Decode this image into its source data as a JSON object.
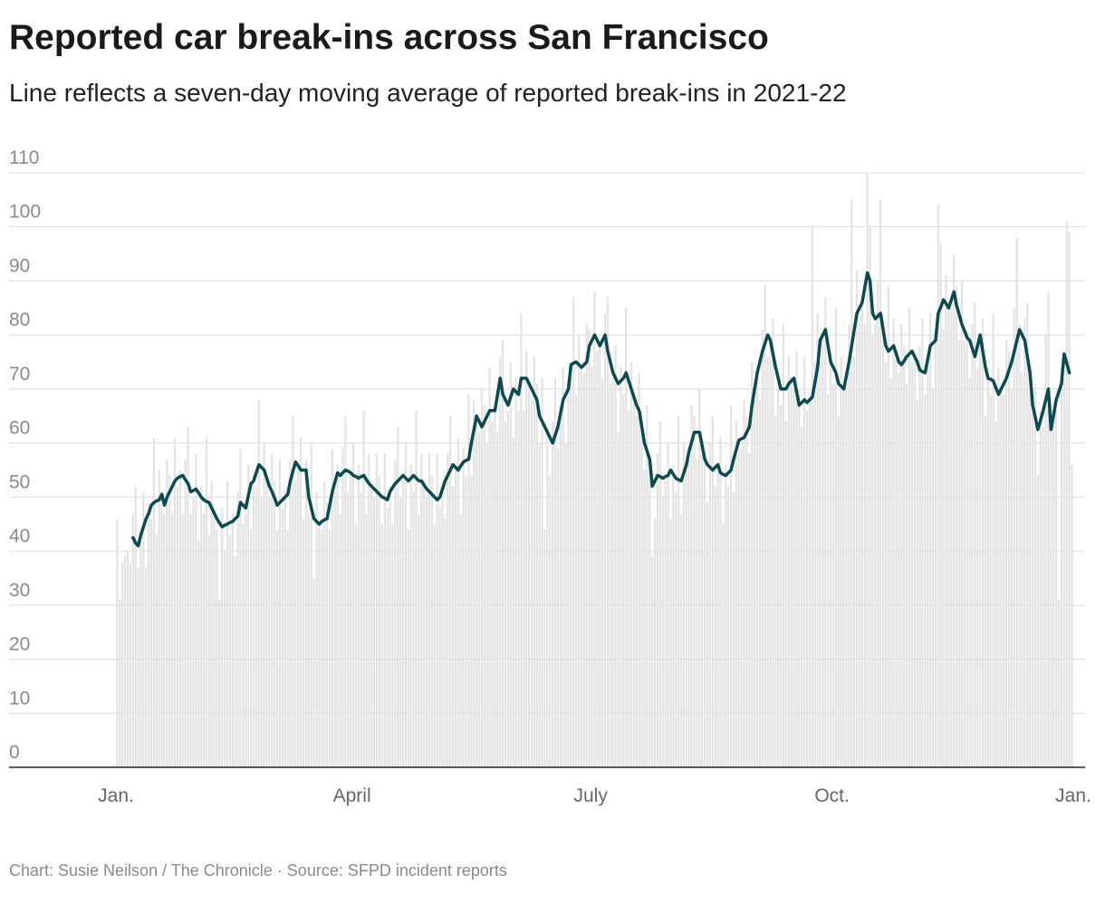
{
  "chart_data": {
    "type": "combo",
    "title": "Reported car break-ins across San Francisco",
    "subtitle": "Line reflects a seven-day moving average of reported break-ins in 2021-22",
    "source": "Chart: Susie Neilson / The Chronicle · Source: SFPD incident reports",
    "grid": true,
    "xlim": [
      0,
      365
    ],
    "xticks": [
      {
        "value": 0,
        "label": "Jan."
      },
      {
        "value": 90,
        "label": "April"
      },
      {
        "value": 181,
        "label": "July"
      },
      {
        "value": 273,
        "label": "Oct."
      },
      {
        "value": 365,
        "label": "Jan."
      }
    ],
    "ylim": [
      0,
      110
    ],
    "yticks": [
      0,
      10,
      20,
      30,
      40,
      50,
      60,
      70,
      80,
      90,
      100,
      110
    ],
    "x": [
      0,
      1,
      2,
      3,
      4,
      5,
      6,
      7,
      8,
      9,
      10,
      11,
      12,
      13,
      14,
      15,
      16,
      17,
      18,
      19,
      20,
      21,
      22,
      23,
      24,
      25,
      26,
      27,
      28,
      29,
      30,
      31,
      32,
      33,
      34,
      35,
      36,
      37,
      38,
      39,
      40,
      41,
      42,
      43,
      44,
      45,
      46,
      47,
      48,
      49,
      50,
      51,
      52,
      53,
      54,
      55,
      56,
      57,
      58,
      59,
      60,
      61,
      62,
      63,
      64,
      65,
      66,
      67,
      68,
      69,
      70,
      71,
      72,
      73,
      74,
      75,
      76,
      77,
      78,
      79,
      80,
      81,
      82,
      83,
      84,
      85,
      86,
      87,
      88,
      89,
      90,
      91,
      92,
      93,
      94,
      95,
      96,
      97,
      98,
      99,
      100,
      101,
      102,
      103,
      104,
      105,
      106,
      107,
      108,
      109,
      110,
      111,
      112,
      113,
      114,
      115,
      116,
      117,
      118,
      119,
      120,
      121,
      122,
      123,
      124,
      125,
      126,
      127,
      128,
      129,
      130,
      131,
      132,
      133,
      134,
      135,
      136,
      137,
      138,
      139,
      140,
      141,
      142,
      143,
      144,
      145,
      146,
      147,
      148,
      149,
      150,
      151,
      152,
      153,
      154,
      155,
      156,
      157,
      158,
      159,
      160,
      161,
      162,
      163,
      164,
      165,
      166,
      167,
      168,
      169,
      170,
      171,
      172,
      173,
      174,
      175,
      176,
      177,
      178,
      179,
      180,
      181,
      182,
      183,
      184,
      185,
      186,
      187,
      188,
      189,
      190,
      191,
      192,
      193,
      194,
      195,
      196,
      197,
      198,
      199,
      200,
      201,
      202,
      203,
      204,
      205,
      206,
      207,
      208,
      209,
      210,
      211,
      212,
      213,
      214,
      215,
      216,
      217,
      218,
      219,
      220,
      221,
      222,
      223,
      224,
      225,
      226,
      227,
      228,
      229,
      230,
      231,
      232,
      233,
      234,
      235,
      236,
      237,
      238,
      239,
      240,
      241,
      242,
      243,
      244,
      245,
      246,
      247,
      248,
      249,
      250,
      251,
      252,
      253,
      254,
      255,
      256,
      257,
      258,
      259,
      260,
      261,
      262,
      263,
      264,
      265,
      266,
      267,
      268,
      269,
      270,
      271,
      272,
      273,
      274,
      275,
      276,
      277,
      278,
      279,
      280,
      281,
      282,
      283,
      284,
      285,
      286,
      287,
      288,
      289,
      290,
      291,
      292,
      293,
      294,
      295,
      296,
      297,
      298,
      299,
      300,
      301,
      302,
      303,
      304,
      305,
      306,
      307,
      308,
      309,
      310,
      311,
      312,
      313,
      314,
      315,
      316,
      317,
      318,
      319,
      320,
      321,
      322,
      323,
      324,
      325,
      326,
      327,
      328,
      329,
      330,
      331,
      332,
      333,
      334,
      335,
      336,
      337,
      338,
      339,
      340,
      341,
      342,
      343,
      344,
      345,
      346,
      347,
      348,
      349,
      350,
      351,
      352,
      353,
      354,
      355,
      356,
      357,
      358,
      359,
      360,
      361,
      362,
      363,
      364
    ],
    "series": [
      {
        "type": "bar",
        "color": "#e3e3e3",
        "values": [
          46,
          31,
          38,
          39,
          40,
          38,
          47,
          52,
          37,
          42,
          51,
          37,
          49,
          46,
          61,
          43,
          55,
          51,
          47,
          57,
          54,
          47,
          61,
          52,
          55,
          47,
          57,
          63,
          47,
          50,
          58,
          42,
          52,
          47,
          61,
          43,
          53,
          47,
          44,
          31,
          48,
          40,
          53,
          43,
          47,
          39,
          51,
          59,
          45,
          47,
          56,
          44,
          55,
          52,
          68,
          50,
          60,
          54,
          50,
          58,
          53,
          44,
          57,
          48,
          51,
          44,
          57,
          65,
          53,
          55,
          61,
          46,
          57,
          47,
          60,
          35,
          51,
          45,
          44,
          53,
          49,
          44,
          59,
          51,
          56,
          47,
          59,
          65,
          51,
          54,
          60,
          45,
          56,
          51,
          66,
          47,
          58,
          52,
          50,
          58,
          54,
          45,
          58,
          48,
          52,
          45,
          57,
          63,
          50,
          53,
          60,
          44,
          56,
          51,
          66,
          47,
          58,
          52,
          50,
          58,
          54,
          45,
          58,
          48,
          53,
          46,
          58,
          65,
          52,
          55,
          61,
          47,
          59,
          54,
          69,
          54,
          68,
          65,
          62,
          70,
          67,
          60,
          74,
          64,
          67,
          62,
          76,
          79,
          64,
          66,
          75,
          61,
          72,
          66,
          84,
          66,
          77,
          71,
          68,
          76,
          71,
          60,
          72,
          44,
          63,
          54,
          64,
          72,
          59,
          65,
          74,
          60,
          72,
          72,
          87,
          69,
          80,
          74,
          73,
          82,
          81,
          74,
          88,
          77,
          79,
          72,
          84,
          87,
          71,
          72,
          78,
          62,
          74,
          69,
          85,
          66,
          75,
          69,
          65,
          73,
          66,
          55,
          67,
          55,
          39,
          46,
          58,
          64,
          50,
          53,
          60,
          46,
          56,
          51,
          65,
          47,
          60,
          56,
          57,
          67,
          65,
          57,
          70,
          58,
          58,
          49,
          60,
          65,
          52,
          55,
          61,
          45,
          56,
          52,
          67,
          51,
          64,
          61,
          59,
          68,
          65,
          58,
          75,
          68,
          74,
          68,
          81,
          89,
          76,
          78,
          83,
          65,
          74,
          67,
          82,
          64,
          76,
          72,
          70,
          77,
          70,
          63,
          76,
          66,
          69,
          100,
          75,
          84,
          75,
          79,
          87,
          69,
          77,
          71,
          85,
          65,
          76,
          70,
          71,
          82,
          105,
          76,
          92,
          83,
          87,
          82,
          110,
          100,
          80,
          82,
          90,
          105,
          83,
          75,
          89,
          72,
          83,
          77,
          73,
          82,
          78,
          71,
          85,
          75,
          77,
          68,
          78,
          83,
          69,
          75,
          84,
          70,
          81,
          104,
          97,
          81,
          91,
          85,
          85,
          95,
          89,
          79,
          90,
          79,
          81,
          72,
          82,
          86,
          74,
          79,
          83,
          65,
          74,
          69,
          84,
          64,
          74,
          70,
          69,
          79,
          77,
          70,
          85,
          98,
          82,
          73,
          83,
          86,
          69,
          66,
          71,
          54,
          66,
          63,
          80,
          88,
          68,
          65,
          66,
          31,
          74,
          72,
          101,
          99,
          56
        ]
      },
      {
        "type": "line",
        "color": "#0b4a4f",
        "values": [
          null,
          null,
          null,
          null,
          null,
          null,
          42.5,
          41.5,
          41,
          43,
          44.5,
          46,
          47,
          48.5,
          49,
          49.3,
          49.5,
          50.5,
          48.5,
          50,
          51,
          52,
          53,
          53.5,
          53.8,
          54,
          53.2,
          52.5,
          51,
          51.2,
          51.5,
          50.8,
          50,
          49.5,
          49.2,
          49,
          48,
          47,
          46,
          45.2,
          44.5,
          44.8,
          45,
          45.3,
          45.5,
          46,
          46.5,
          49,
          48.5,
          48,
          50.3,
          52.5,
          53,
          54.5,
          56,
          55.5,
          55,
          53.5,
          52,
          51,
          49.8,
          48.5,
          49,
          49.5,
          50,
          50.5,
          53,
          54.8,
          56.5,
          55.8,
          55,
          55,
          55,
          50,
          48,
          46,
          45.5,
          45,
          45.5,
          45.8,
          46,
          48.5,
          51,
          52.8,
          54.5,
          54,
          54.5,
          55,
          54.8,
          54.5,
          54,
          53.8,
          53.5,
          53.8,
          54,
          53.2,
          52.5,
          52,
          51.5,
          51,
          50.5,
          50,
          49.8,
          49.5,
          51,
          51.8,
          52.5,
          53,
          53.5,
          54,
          53.5,
          53,
          53.5,
          54,
          53.5,
          53,
          53,
          52.2,
          51.5,
          51,
          50.5,
          50,
          49.5,
          50,
          51.5,
          53,
          54,
          55,
          56,
          55.5,
          55,
          55.8,
          56.5,
          56.8,
          57,
          60,
          62.5,
          65,
          64,
          63,
          64,
          65,
          66,
          66,
          66,
          69,
          72,
          69,
          68,
          67,
          68.5,
          70,
          69.5,
          69,
          72,
          72,
          72,
          71,
          70,
          69,
          68,
          65,
          64,
          63,
          62,
          61,
          60,
          61.5,
          63,
          65.5,
          68,
          69,
          70,
          74.5,
          74.8,
          75,
          74.5,
          74,
          74.5,
          75,
          78,
          79,
          80,
          79,
          78,
          79,
          80,
          77,
          75,
          73,
          72,
          71,
          71.5,
          72,
          73,
          71.5,
          70,
          68.5,
          67,
          66,
          63,
          60,
          58.5,
          57,
          52,
          53,
          54,
          53.8,
          53.5,
          53.8,
          54,
          55,
          54.2,
          53.5,
          53.2,
          53,
          54.5,
          56,
          58.5,
          60.2,
          62,
          62,
          62,
          59.5,
          57,
          56,
          55.5,
          55,
          55.5,
          56,
          54.5,
          54.2,
          54,
          54.5,
          55,
          57,
          58.8,
          60.5,
          60.8,
          61,
          62,
          63,
          67,
          70,
          73,
          75,
          77,
          78.5,
          80,
          79,
          76.5,
          74,
          72,
          70,
          70,
          70,
          71,
          71.5,
          72,
          69.5,
          67,
          67.5,
          68,
          67.5,
          68,
          68.5,
          71.2,
          74,
          79,
          80,
          81,
          78,
          75,
          74,
          73,
          71,
          70.5,
          70,
          72.5,
          75,
          78,
          81,
          84,
          85,
          86,
          88.8,
          91.5,
          90,
          84,
          83,
          83.5,
          84,
          81,
          78,
          77,
          77.5,
          78,
          76.5,
          75,
          74.5,
          75.2,
          76,
          76.5,
          77,
          76,
          75,
          73.5,
          73.2,
          73,
          75.5,
          78,
          78.5,
          79,
          84,
          85.2,
          86.5,
          85.8,
          85,
          86.5,
          88,
          85.5,
          83.8,
          82,
          80.8,
          79.5,
          79,
          77.5,
          76,
          78,
          80,
          77,
          74,
          72,
          71.8,
          71.5,
          70.2,
          69,
          70,
          71,
          72,
          73.5,
          75,
          77,
          79,
          81,
          80,
          79,
          76,
          73,
          67,
          64.8,
          62.5,
          64.2,
          66,
          68,
          70,
          62.5,
          65.2,
          68,
          69.5,
          71,
          76.5,
          74.8,
          73,
          null
        ]
      }
    ]
  }
}
